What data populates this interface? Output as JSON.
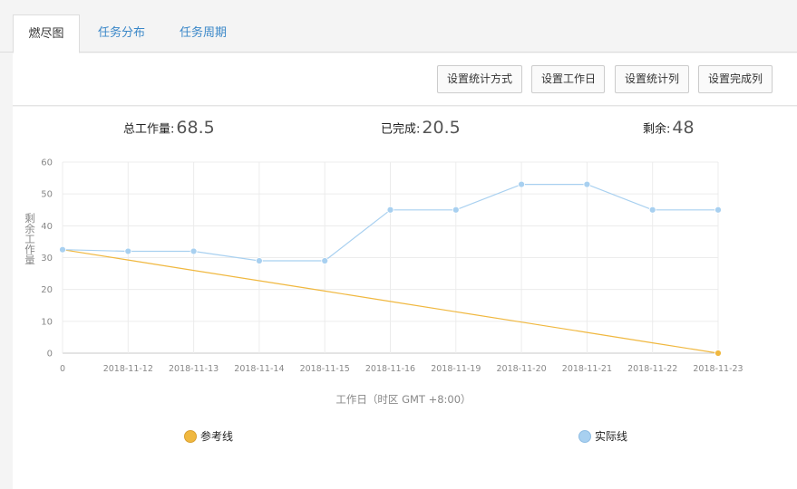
{
  "tabs": [
    {
      "label": "燃尽图",
      "active": true
    },
    {
      "label": "任务分布",
      "active": false
    },
    {
      "label": "任务周期",
      "active": false
    }
  ],
  "toolbar": {
    "buttons": [
      "设置统计方式",
      "设置工作日",
      "设置统计列",
      "设置完成列"
    ]
  },
  "stats": {
    "total_label": "总工作量:",
    "total_value": "68.5",
    "done_label": "已完成:",
    "done_value": "20.5",
    "remaining_label": "剩余:",
    "remaining_value": "48"
  },
  "colors": {
    "reference": "#f0b840",
    "actual": "#a8d0f0",
    "link": "#3a87c8"
  },
  "chart_data": {
    "type": "line",
    "categories": [
      "0",
      "2018-11-12",
      "2018-11-13",
      "2018-11-14",
      "2018-11-15",
      "2018-11-16",
      "2018-11-19",
      "2018-11-20",
      "2018-11-21",
      "2018-11-22",
      "2018-11-23"
    ],
    "series": [
      {
        "name": "参考线",
        "values": [
          32.5,
          29.25,
          26.0,
          22.75,
          19.5,
          16.25,
          13.0,
          9.75,
          6.5,
          3.25,
          0
        ],
        "color": "#f0b840",
        "markers": "last"
      },
      {
        "name": "实际线",
        "values": [
          32.5,
          32,
          32,
          29,
          29,
          45,
          45,
          53,
          53,
          45,
          45
        ],
        "color": "#a8d0f0",
        "markers": "all"
      }
    ],
    "xlabel": "工作日（时区 GMT +8:00）",
    "ylabel": "剩余工作量",
    "ylim": [
      0,
      60
    ],
    "yticks": [
      0,
      10,
      20,
      30,
      40,
      50,
      60
    ],
    "grid": true,
    "legend": "bottom"
  }
}
